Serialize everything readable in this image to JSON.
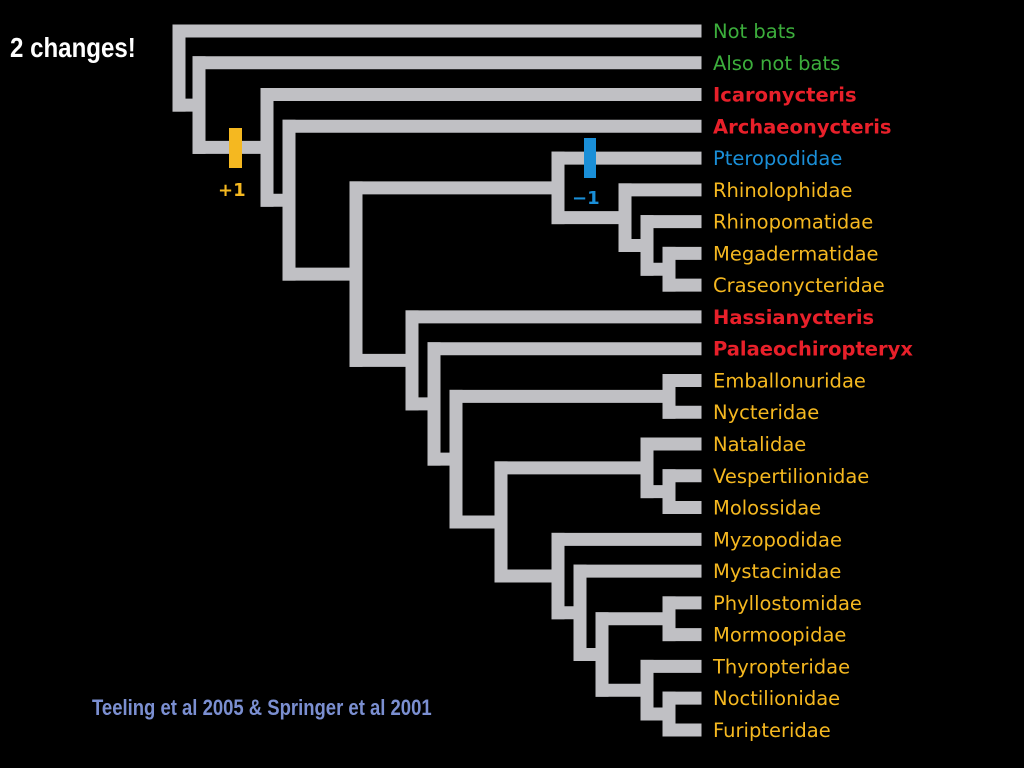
{
  "slide": {
    "title": "2 changes!",
    "citation": "Teeling et al 2005 & Springer et al 2001"
  },
  "colors": {
    "background": "#000000",
    "branch": "#c0c0c4",
    "outgroup": "#3cae3c",
    "fossil": "#e8202a",
    "pteropodidae": "#1a8fd8",
    "extant": "#f5b820",
    "gain_marker": "#f5b820",
    "loss_marker": "#1a8fd8"
  },
  "tree": {
    "taxa": [
      {
        "id": "not-bats",
        "label": "Not bats",
        "group": "outgroup",
        "bold": false
      },
      {
        "id": "also-not-bats",
        "label": "Also not bats",
        "group": "outgroup",
        "bold": false
      },
      {
        "id": "icaronycteris",
        "label": "Icaronycteris",
        "group": "fossil",
        "bold": true
      },
      {
        "id": "archaeonycteris",
        "label": "Archaeonycteris",
        "group": "fossil",
        "bold": true
      },
      {
        "id": "pteropodidae",
        "label": "Pteropodidae",
        "group": "pteropodidae",
        "bold": false
      },
      {
        "id": "rhinolophidae",
        "label": "Rhinolophidae",
        "group": "extant",
        "bold": false
      },
      {
        "id": "rhinopomatidae",
        "label": "Rhinopomatidae",
        "group": "extant",
        "bold": false
      },
      {
        "id": "megadermatidae",
        "label": "Megadermatidae",
        "group": "extant",
        "bold": false
      },
      {
        "id": "craseonycteridae",
        "label": "Craseonycteridae",
        "group": "extant",
        "bold": false
      },
      {
        "id": "hassianycteris",
        "label": "Hassianycteris",
        "group": "fossil",
        "bold": true
      },
      {
        "id": "palaeochiropteryx",
        "label": "Palaeochiropteryx",
        "group": "fossil",
        "bold": true
      },
      {
        "id": "emballonuridae",
        "label": "Emballonuridae",
        "group": "extant",
        "bold": false
      },
      {
        "id": "nycteridae",
        "label": "Nycteridae",
        "group": "extant",
        "bold": false
      },
      {
        "id": "natalidae",
        "label": "Natalidae",
        "group": "extant",
        "bold": false
      },
      {
        "id": "vespertilionidae",
        "label": "Vespertilionidae",
        "group": "extant",
        "bold": false
      },
      {
        "id": "molossidae",
        "label": "Molossidae",
        "group": "extant",
        "bold": false
      },
      {
        "id": "myzopodidae",
        "label": "Myzopodidae",
        "group": "extant",
        "bold": false
      },
      {
        "id": "mystacinidae",
        "label": "Mystacinidae",
        "group": "extant",
        "bold": false
      },
      {
        "id": "phyllostomidae",
        "label": "Phyllostomidae",
        "group": "extant",
        "bold": false
      },
      {
        "id": "mormoopidae",
        "label": "Mormoopidae",
        "group": "extant",
        "bold": false
      },
      {
        "id": "thyropteridae",
        "label": "Thyropteridae",
        "group": "extant",
        "bold": false
      },
      {
        "id": "noctilionidae",
        "label": "Noctilionidae",
        "group": "extant",
        "bold": false
      },
      {
        "id": "furipteridae",
        "label": "Furipteridae",
        "group": "extant",
        "bold": false
      }
    ],
    "markers": [
      {
        "id": "gain",
        "label": "+1",
        "color_key": "gain_marker"
      },
      {
        "id": "loss",
        "label": "−1",
        "color_key": "loss_marker"
      }
    ]
  }
}
